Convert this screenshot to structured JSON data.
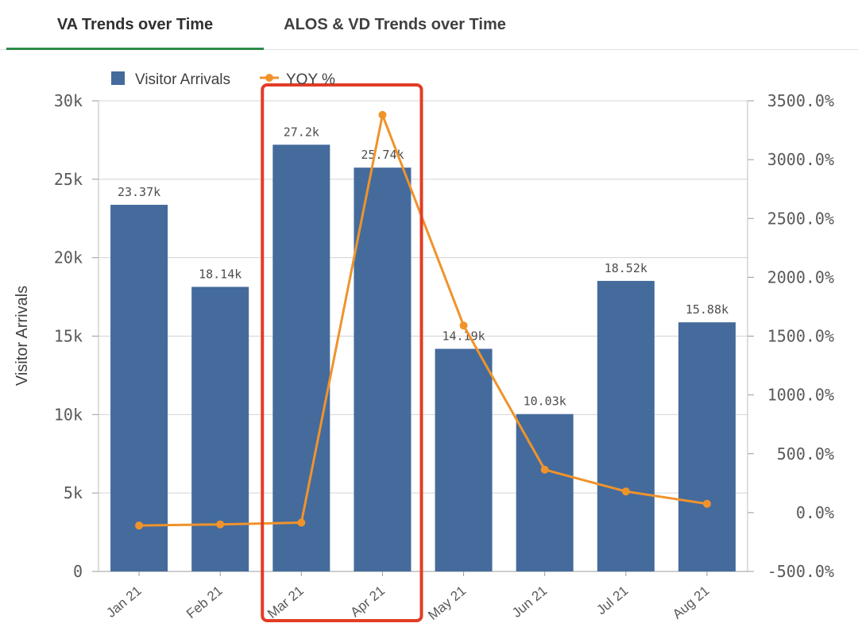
{
  "tabs": [
    {
      "label": "VA Trends over Time",
      "active": true
    },
    {
      "label": "ALOS & VD Trends over Time",
      "active": false
    }
  ],
  "colors": {
    "bar": "#446b9c",
    "line": "#f0932b",
    "highlight": "#e23c26",
    "tab_underline": "#2e8b4a",
    "grid": "#d3d3d3"
  },
  "chart_data": {
    "type": "bar",
    "categories": [
      "Jan 21",
      "Feb 21",
      "Mar 21",
      "Apr 21",
      "May 21",
      "Jun 21",
      "Jul 21",
      "Aug 21"
    ],
    "series": [
      {
        "name": "Visitor Arrivals",
        "type": "bar",
        "axis": "left",
        "values": [
          23370,
          18140,
          27200,
          25740,
          14190,
          10030,
          18520,
          15880
        ],
        "labels": [
          "23.37k",
          "18.14k",
          "27.2k",
          "25.74k",
          "14.19k",
          "10.03k",
          "18.52k",
          "15.88k"
        ]
      },
      {
        "name": "YOY %",
        "type": "line",
        "axis": "right",
        "values": [
          -110,
          -100,
          -85,
          3380,
          1590,
          365,
          180,
          75
        ]
      }
    ],
    "ylabel": "Visitor Arrivals",
    "y_left": {
      "range": [
        0,
        30000
      ],
      "ticks": [
        0,
        5000,
        10000,
        15000,
        20000,
        25000,
        30000
      ],
      "tick_labels": [
        "0",
        "5k",
        "10k",
        "15k",
        "20k",
        "25k",
        "30k"
      ]
    },
    "y_right": {
      "range": [
        -500,
        3500
      ],
      "ticks": [
        -500,
        0,
        500,
        1000,
        1500,
        2000,
        2500,
        3000,
        3500
      ],
      "tick_labels": [
        "-500.0%",
        "0.0%",
        "500.0%",
        "1000.0%",
        "1500.0%",
        "2000.0%",
        "2500.0%",
        "3000.0%",
        "3500.0%"
      ]
    },
    "grid": true,
    "legend": "top-left",
    "highlight_categories": [
      "Mar 21",
      "Apr 21"
    ]
  }
}
